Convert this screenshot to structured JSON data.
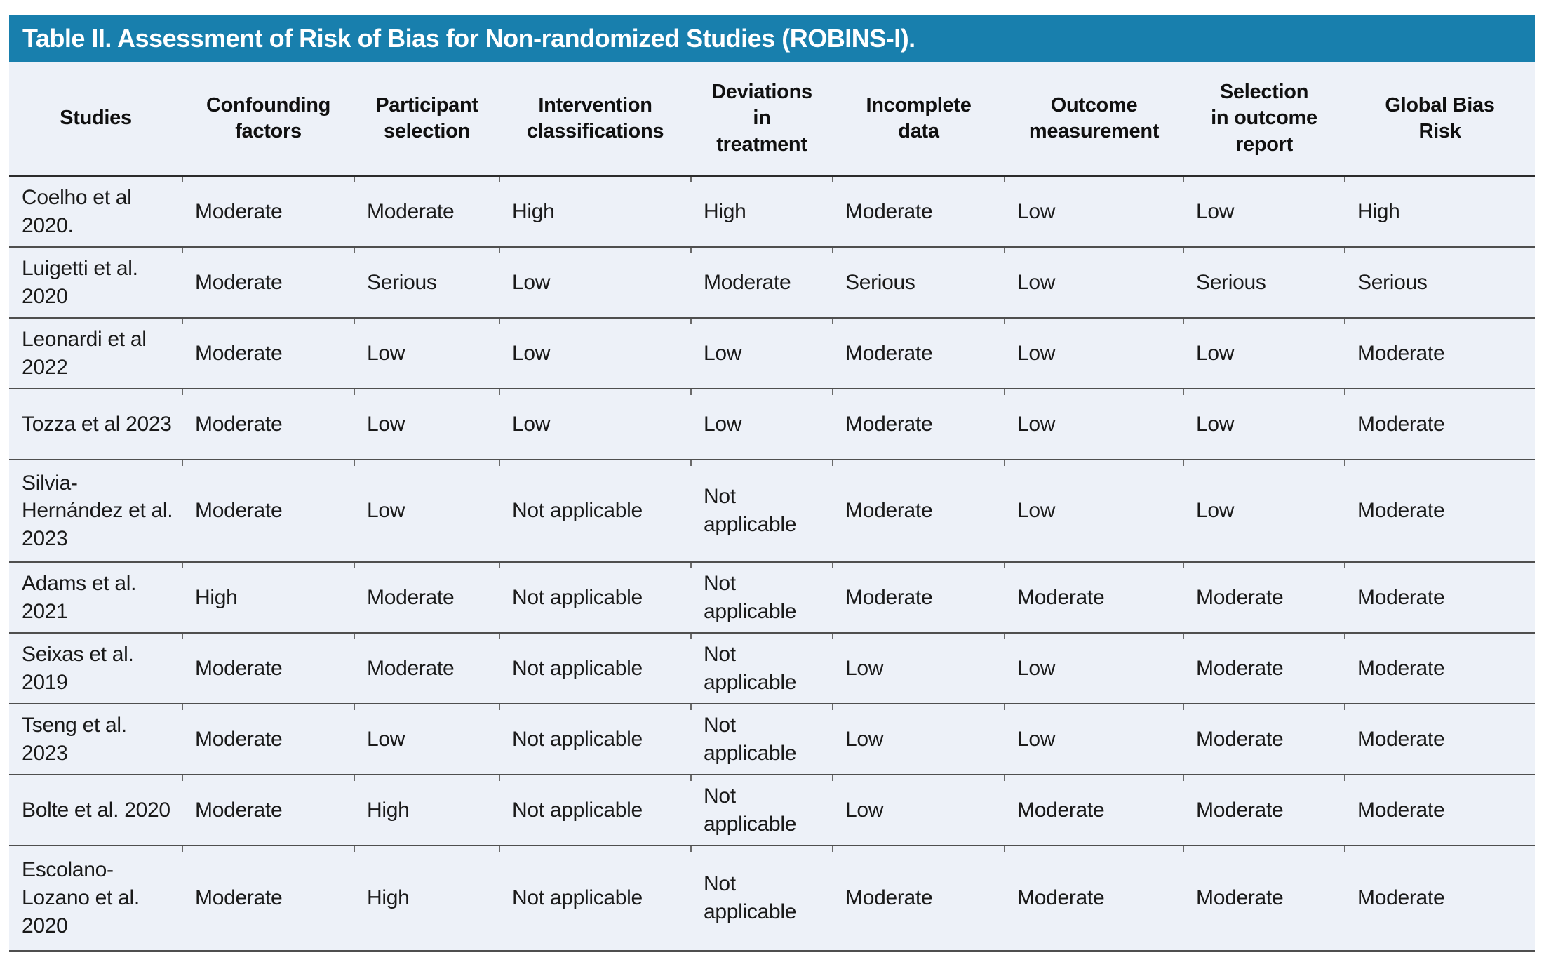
{
  "table": {
    "title": "Table II. Assessment of Risk of Bias for Non-randomized Studies (ROBINS-I).",
    "columns": [
      "Studies",
      "Confounding\nfactors",
      "Participant\nselection",
      "Intervention\nclassifications",
      "Deviations\nin\ntreatment",
      "Incomplete\ndata",
      "Outcome\nmeasurement",
      "Selection\nin outcome\nreport",
      "Global Bias\nRisk"
    ],
    "rows": [
      {
        "study": "Coelho et al 2020.",
        "values": [
          "Moderate",
          "Moderate",
          "High",
          "High",
          "Moderate",
          "Low",
          "Low",
          "High"
        ]
      },
      {
        "study": "Luigetti et al. 2020",
        "values": [
          "Moderate",
          "Serious",
          "Low",
          "Moderate",
          "Serious",
          "Low",
          "Serious",
          "Serious"
        ]
      },
      {
        "study": "Leonardi et al 2022",
        "values": [
          "Moderate",
          "Low",
          "Low",
          "Low",
          "Moderate",
          "Low",
          "Low",
          "Moderate"
        ]
      },
      {
        "study": "Tozza et al 2023",
        "values": [
          "Moderate",
          "Low",
          "Low",
          "Low",
          "Moderate",
          "Low",
          "Low",
          "Moderate"
        ]
      },
      {
        "study": "Silvia-Hernández et al. 2023",
        "values": [
          "Moderate",
          "Low",
          "Not applicable",
          "Not applicable",
          "Moderate",
          "Low",
          "Low",
          "Moderate"
        ]
      },
      {
        "study": "Adams et al. 2021",
        "values": [
          "High",
          "Moderate",
          "Not applicable",
          "Not applicable",
          "Moderate",
          "Moderate",
          "Moderate",
          "Moderate"
        ]
      },
      {
        "study": "Seixas et al. 2019",
        "values": [
          "Moderate",
          "Moderate",
          "Not applicable",
          "Not applicable",
          "Low",
          "Low",
          "Moderate",
          "Moderate"
        ]
      },
      {
        "study": "Tseng et al. 2023",
        "values": [
          "Moderate",
          "Low",
          "Not applicable",
          "Not applicable",
          "Low",
          "Low",
          "Moderate",
          "Moderate"
        ]
      },
      {
        "study": "Bolte et al. 2020",
        "values": [
          "Moderate",
          "High",
          "Not applicable",
          "Not applicable",
          "Low",
          "Moderate",
          "Moderate",
          "Moderate"
        ]
      },
      {
        "study": "Escolano-Lozano et al. 2020",
        "values": [
          "Moderate",
          "High",
          "Not applicable",
          "Not applicable",
          "Moderate",
          "Moderate",
          "Moderate",
          "Moderate"
        ]
      }
    ],
    "colors": {
      "header_bar": "#187FAD",
      "body_background": "#EDF1F8",
      "row_line": "#4f4f4f",
      "text": "#1a1a1a"
    }
  }
}
